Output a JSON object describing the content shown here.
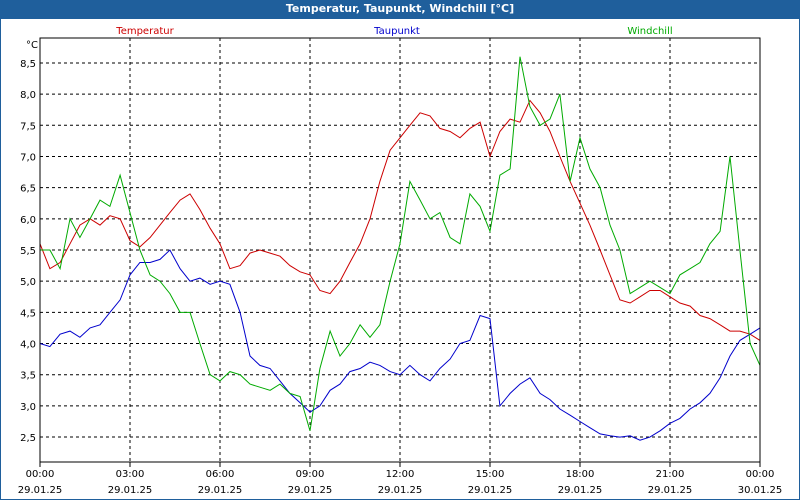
{
  "window": {
    "title": "Temperatur, Taupunkt, Windchill [°C]"
  },
  "chart_data": {
    "type": "line",
    "unit": "°C",
    "ylim": [
      2.1,
      8.9
    ],
    "yticks": [
      "2,5",
      "3,0",
      "3,5",
      "4,0",
      "4,5",
      "5,0",
      "5,5",
      "6,0",
      "6,5",
      "7,0",
      "7,5",
      "8,0",
      "8,5"
    ],
    "ytick_values": [
      2.5,
      3.0,
      3.5,
      4.0,
      4.5,
      5.0,
      5.5,
      6.0,
      6.5,
      7.0,
      7.5,
      8.0,
      8.5
    ],
    "xlim": [
      0,
      24
    ],
    "xticks": [
      {
        "h": 0,
        "time": "00:00",
        "date": "29.01.25"
      },
      {
        "h": 3,
        "time": "03:00",
        "date": "29.01.25"
      },
      {
        "h": 6,
        "time": "06:00",
        "date": "29.01.25"
      },
      {
        "h": 9,
        "time": "09:00",
        "date": "29.01.25"
      },
      {
        "h": 12,
        "time": "12:00",
        "date": "29.01.25"
      },
      {
        "h": 15,
        "time": "15:00",
        "date": "29.01.25"
      },
      {
        "h": 18,
        "time": "18:00",
        "date": "29.01.25"
      },
      {
        "h": 21,
        "time": "21:00",
        "date": "29.01.25"
      },
      {
        "h": 24,
        "time": "00:00",
        "date": "30.01.25"
      }
    ],
    "grid": true,
    "legend": "top",
    "colors": {
      "Temperatur": "#cc0000",
      "Taupunkt": "#0000cc",
      "Windchill": "#00aa00"
    },
    "series": [
      {
        "name": "Temperatur",
        "x": [
          0,
          0.33,
          0.67,
          1,
          1.33,
          1.67,
          2,
          2.33,
          2.67,
          3,
          3.33,
          3.67,
          4,
          4.33,
          4.67,
          5,
          5.33,
          5.67,
          6,
          6.33,
          6.67,
          7,
          7.33,
          7.67,
          8,
          8.33,
          8.67,
          9,
          9.33,
          9.67,
          10,
          10.33,
          10.67,
          11,
          11.33,
          11.67,
          12,
          12.33,
          12.67,
          13,
          13.33,
          13.67,
          14,
          14.33,
          14.67,
          15,
          15.33,
          15.67,
          16,
          16.33,
          16.67,
          17,
          17.33,
          17.67,
          18,
          18.33,
          18.67,
          19,
          19.33,
          19.67,
          20,
          20.33,
          20.67,
          21,
          21.33,
          21.67,
          22,
          22.33,
          22.67,
          23,
          23.33,
          23.67,
          24
        ],
        "y": [
          5.6,
          5.2,
          5.3,
          5.6,
          5.9,
          6.0,
          5.9,
          6.05,
          6.0,
          5.65,
          5.55,
          5.7,
          5.9,
          6.1,
          6.3,
          6.4,
          6.15,
          5.85,
          5.6,
          5.2,
          5.25,
          5.45,
          5.5,
          5.45,
          5.4,
          5.25,
          5.15,
          5.1,
          4.85,
          4.8,
          5.0,
          5.3,
          5.6,
          6.0,
          6.6,
          7.1,
          7.3,
          7.5,
          7.7,
          7.65,
          7.45,
          7.4,
          7.3,
          7.45,
          7.55,
          7.0,
          7.4,
          7.6,
          7.55,
          7.9,
          7.7,
          7.4,
          7.0,
          6.6,
          6.25,
          5.9,
          5.5,
          5.1,
          4.7,
          4.65,
          4.75,
          4.85,
          4.85,
          4.75,
          4.65,
          4.6,
          4.45,
          4.4,
          4.3,
          4.2,
          4.2,
          4.15,
          4.05
        ]
      },
      {
        "name": "Taupunkt",
        "x": [
          0,
          0.33,
          0.67,
          1,
          1.33,
          1.67,
          2,
          2.33,
          2.67,
          3,
          3.33,
          3.67,
          4,
          4.33,
          4.67,
          5,
          5.33,
          5.67,
          6,
          6.33,
          6.67,
          7,
          7.33,
          7.67,
          8,
          8.33,
          8.67,
          9,
          9.33,
          9.67,
          10,
          10.33,
          10.67,
          11,
          11.33,
          11.67,
          12,
          12.33,
          12.67,
          13,
          13.33,
          13.67,
          14,
          14.33,
          14.67,
          15,
          15.33,
          15.67,
          16,
          16.33,
          16.67,
          17,
          17.33,
          17.67,
          18,
          18.33,
          18.67,
          19,
          19.33,
          19.67,
          20,
          20.33,
          20.67,
          21,
          21.33,
          21.67,
          22,
          22.33,
          22.67,
          23,
          23.33,
          23.67,
          24
        ],
        "y": [
          4.0,
          3.95,
          4.15,
          4.2,
          4.1,
          4.25,
          4.3,
          4.5,
          4.7,
          5.1,
          5.3,
          5.3,
          5.35,
          5.5,
          5.2,
          5.0,
          5.05,
          4.95,
          5.0,
          4.95,
          4.5,
          3.8,
          3.65,
          3.6,
          3.4,
          3.2,
          3.05,
          2.9,
          3.0,
          3.25,
          3.35,
          3.55,
          3.6,
          3.7,
          3.65,
          3.55,
          3.5,
          3.65,
          3.5,
          3.4,
          3.6,
          3.75,
          4.0,
          4.05,
          4.45,
          4.4,
          3.0,
          3.2,
          3.35,
          3.45,
          3.2,
          3.1,
          2.95,
          2.85,
          2.75,
          2.65,
          2.55,
          2.52,
          2.5,
          2.52,
          2.45,
          2.5,
          2.6,
          2.72,
          2.8,
          2.95,
          3.05,
          3.2,
          3.45,
          3.8,
          4.05,
          4.15,
          4.25
        ]
      },
      {
        "name": "Windchill",
        "x": [
          0,
          0.33,
          0.67,
          1,
          1.33,
          1.67,
          2,
          2.33,
          2.67,
          3,
          3.33,
          3.67,
          4,
          4.33,
          4.67,
          5,
          5.33,
          5.67,
          6,
          6.33,
          6.67,
          7,
          7.33,
          7.67,
          8,
          8.33,
          8.67,
          9,
          9.33,
          9.67,
          10,
          10.33,
          10.67,
          11,
          11.33,
          11.67,
          12,
          12.33,
          12.67,
          13,
          13.33,
          13.67,
          14,
          14.33,
          14.67,
          15,
          15.33,
          15.67,
          16,
          16.33,
          16.67,
          17,
          17.33,
          17.67,
          18,
          18.33,
          18.67,
          19,
          19.33,
          19.67,
          20,
          20.33,
          20.67,
          21,
          21.33,
          21.67,
          22,
          22.33,
          22.67,
          23,
          23.33,
          23.67,
          24
        ],
        "y": [
          5.5,
          5.5,
          5.2,
          6.0,
          5.7,
          6.0,
          6.3,
          6.2,
          6.7,
          6.1,
          5.5,
          5.1,
          5.0,
          4.8,
          4.5,
          4.5,
          4.0,
          3.5,
          3.4,
          3.55,
          3.5,
          3.35,
          3.3,
          3.25,
          3.35,
          3.2,
          3.15,
          2.6,
          3.6,
          4.2,
          3.8,
          4.0,
          4.3,
          4.1,
          4.3,
          5.0,
          5.6,
          6.6,
          6.3,
          6.0,
          6.1,
          5.7,
          5.6,
          6.4,
          6.2,
          5.8,
          6.7,
          6.8,
          8.6,
          7.8,
          7.5,
          7.6,
          8.0,
          6.6,
          7.3,
          6.8,
          6.5,
          5.9,
          5.5,
          4.8,
          4.9,
          5.0,
          4.9,
          4.8,
          5.1,
          5.2,
          5.3,
          5.6,
          5.8,
          7.0,
          5.5,
          4.0,
          3.65
        ]
      }
    ]
  }
}
